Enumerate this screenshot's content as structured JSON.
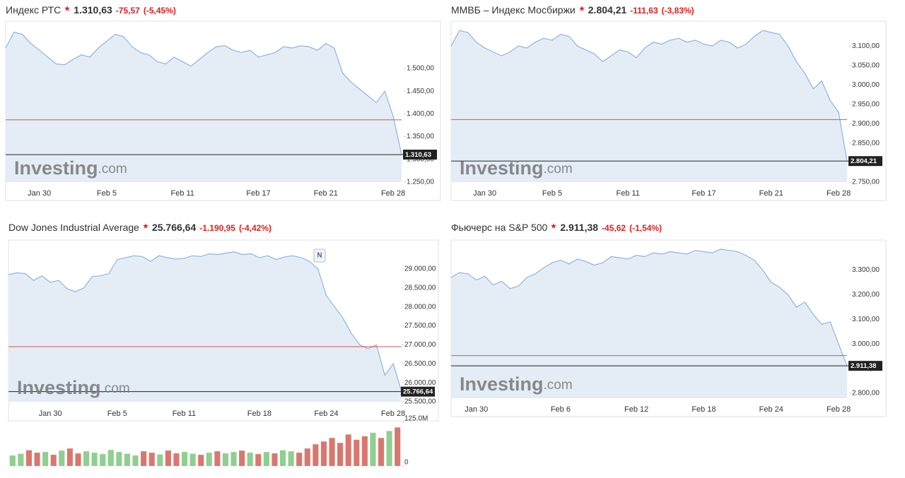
{
  "chart_data": [
    {
      "type": "area",
      "title": "Индекс РТС",
      "price": "1.310,63",
      "change": "-75,57",
      "change_pct": "(-5,45%)",
      "brand": "Investing",
      "brand_suffix": ".com",
      "color": "#8db4de",
      "fill": "#e4edf6",
      "reference_line": {
        "value": 1387,
        "color": "#d9534f"
      },
      "last_label": "1.310,63",
      "categories": [
        null,
        null,
        null,
        null,
        "Jan 30",
        null,
        null,
        null,
        null,
        null,
        null,
        null,
        "Feb 5",
        null,
        null,
        null,
        null,
        null,
        null,
        null,
        null,
        "Feb 11",
        null,
        null,
        null,
        null,
        null,
        null,
        null,
        null,
        "Feb 17",
        null,
        null,
        null,
        null,
        null,
        null,
        null,
        "Feb 21",
        null,
        null,
        null,
        null,
        null,
        null,
        null,
        "Feb 28",
        null
      ],
      "values": [
        1545,
        1580,
        1575,
        1555,
        1540,
        1525,
        1510,
        1508,
        1520,
        1530,
        1525,
        1545,
        1560,
        1575,
        1570,
        1548,
        1535,
        1530,
        1515,
        1510,
        1525,
        1515,
        1505,
        1520,
        1535,
        1548,
        1550,
        1540,
        1535,
        1540,
        1525,
        1530,
        1535,
        1548,
        1545,
        1550,
        1548,
        1540,
        1555,
        1545,
        1490,
        1470,
        1455,
        1440,
        1425,
        1450,
        1395,
        1310.63
      ],
      "ylim": [
        1250,
        1604
      ],
      "yticks": [
        {
          "value": 1250,
          "label": "1.250,00"
        },
        {
          "value": 1300,
          "label": "1.300,00"
        },
        {
          "value": 1350,
          "label": "1.350,00"
        },
        {
          "value": 1400,
          "label": "1.400,00"
        },
        {
          "value": 1450,
          "label": "1.450,00"
        },
        {
          "value": 1500,
          "label": "1.500,00"
        }
      ]
    },
    {
      "type": "area",
      "title": "ММВБ – Индекс Мосбиржи",
      "price": "2.804,21",
      "change": "-111,63",
      "change_pct": "(-3,83%)",
      "brand": "Investing",
      "brand_suffix": ".com",
      "color": "#8db4de",
      "fill": "#e4edf6",
      "reference_line": {
        "value": 2911,
        "color": "#d9534f"
      },
      "last_label": "2.804,21",
      "categories": [
        null,
        null,
        null,
        null,
        "Jan 30",
        null,
        null,
        null,
        null,
        null,
        null,
        null,
        "Feb 5",
        null,
        null,
        null,
        null,
        null,
        null,
        null,
        null,
        "Feb 11",
        null,
        null,
        null,
        null,
        null,
        null,
        null,
        null,
        "Feb 17",
        null,
        null,
        null,
        null,
        null,
        null,
        null,
        "Feb 21",
        null,
        null,
        null,
        null,
        null,
        null,
        null,
        "Feb 28",
        null
      ],
      "values": [
        3100,
        3140,
        3135,
        3110,
        3095,
        3085,
        3075,
        3085,
        3100,
        3095,
        3110,
        3120,
        3115,
        3130,
        3125,
        3100,
        3090,
        3080,
        3060,
        3075,
        3090,
        3085,
        3070,
        3095,
        3110,
        3105,
        3115,
        3120,
        3110,
        3115,
        3105,
        3100,
        3115,
        3110,
        3095,
        3105,
        3125,
        3140,
        3135,
        3130,
        3100,
        3060,
        3030,
        2990,
        3010,
        2960,
        2930,
        2804.21
      ],
      "ylim": [
        2750,
        3164
      ],
      "yticks": [
        {
          "value": 2750,
          "label": "2.750,00"
        },
        {
          "value": 2800,
          "label": "2.800,00"
        },
        {
          "value": 2850,
          "label": "2.850,00"
        },
        {
          "value": 2900,
          "label": "2.900,00"
        },
        {
          "value": 2950,
          "label": "2.950,00"
        },
        {
          "value": 3000,
          "label": "3.000,00"
        },
        {
          "value": 3050,
          "label": "3.050,00"
        },
        {
          "value": 3100,
          "label": "3.100,00"
        }
      ]
    },
    {
      "type": "area",
      "title": "Dow Jones Industrial Average",
      "price": "25.766,64",
      "change": "-1.190,95",
      "change_pct": "(-4,42%)",
      "brand": "Investing",
      "brand_suffix": ".com",
      "color": "#8db4de",
      "fill": "#e4edf6",
      "reference_line": {
        "value": 26951,
        "color": "#d9534f"
      },
      "last_label": "25.766,64",
      "news_marker": "N",
      "categories": [
        null,
        null,
        null,
        null,
        null,
        "Jan 30",
        null,
        null,
        null,
        null,
        null,
        null,
        null,
        "Feb 5",
        null,
        null,
        null,
        null,
        null,
        null,
        null,
        "Feb 11",
        null,
        null,
        null,
        null,
        null,
        null,
        null,
        null,
        "Feb 18",
        null,
        null,
        null,
        null,
        null,
        null,
        null,
        "Feb 24",
        null,
        null,
        null,
        null,
        null,
        null,
        null,
        "Feb 28",
        null
      ],
      "values": [
        28850,
        28900,
        28880,
        28700,
        28820,
        28650,
        28700,
        28480,
        28400,
        28500,
        28800,
        28820,
        28880,
        29250,
        29300,
        29350,
        29330,
        29200,
        29350,
        29300,
        29260,
        29280,
        29350,
        29330,
        29400,
        29380,
        29420,
        29450,
        29380,
        29400,
        29300,
        29350,
        29250,
        29320,
        29350,
        29300,
        29200,
        29000,
        28300,
        28000,
        27700,
        27300,
        27000,
        26900,
        27000,
        26200,
        26500,
        25766.64
      ],
      "ylim": [
        25500,
        29763
      ],
      "yticks": [
        {
          "value": 25500,
          "label": "25.500,00"
        },
        {
          "value": 26000,
          "label": "26.000,00"
        },
        {
          "value": 26500,
          "label": "26.500,00"
        },
        {
          "value": 27000,
          "label": "27.000,00"
        },
        {
          "value": 27500,
          "label": "27.500,00"
        },
        {
          "value": 28000,
          "label": "28.000,00"
        },
        {
          "value": 28500,
          "label": "28.500,00"
        },
        {
          "value": 29000,
          "label": "29.000,00"
        }
      ],
      "volume": {
        "up_color": "#8fcf8f",
        "down_color": "#d9776f",
        "values": [
          30000000,
          35000000,
          45000000,
          38000000,
          40000000,
          32000000,
          44000000,
          50000000,
          36000000,
          42000000,
          38000000,
          34000000,
          46000000,
          40000000,
          35000000,
          30000000,
          42000000,
          38000000,
          33000000,
          44000000,
          36000000,
          40000000,
          35000000,
          32000000,
          38000000,
          42000000,
          36000000,
          40000000,
          44000000,
          38000000,
          34000000,
          40000000,
          36000000,
          45000000,
          42000000,
          38000000,
          50000000,
          62000000,
          70000000,
          80000000,
          66000000,
          90000000,
          75000000,
          85000000,
          95000000,
          80000000,
          100000000,
          110000000
        ],
        "ylim": [
          0,
          125000000
        ],
        "yticks": [
          0,
          {
            "value": 125000000,
            "label": "125.0M"
          }
        ]
      }
    },
    {
      "type": "area",
      "title": "Фьючерс на S&P 500",
      "price": "2.911,38",
      "change": "-45,62",
      "change_pct": "(-1,54%)",
      "brand": "Investing",
      "brand_suffix": ".com",
      "color": "#8db4de",
      "fill": "#e4edf6",
      "reference_line": {
        "value": 2953,
        "color": "#d9534f"
      },
      "last_label": "2.911,38",
      "categories": [
        null,
        null,
        null,
        "Jan 30",
        null,
        null,
        null,
        null,
        null,
        null,
        null,
        null,
        null,
        "Feb 6",
        null,
        null,
        null,
        null,
        null,
        null,
        null,
        null,
        "Feb 12",
        null,
        null,
        null,
        null,
        null,
        null,
        null,
        "Feb 18",
        null,
        null,
        null,
        null,
        null,
        null,
        null,
        "Feb 24",
        null,
        null,
        null,
        null,
        null,
        null,
        null,
        "Feb 28",
        null
      ],
      "values": [
        3270,
        3290,
        3285,
        3260,
        3275,
        3240,
        3255,
        3225,
        3235,
        3270,
        3285,
        3310,
        3330,
        3340,
        3325,
        3345,
        3335,
        3320,
        3330,
        3355,
        3350,
        3345,
        3360,
        3355,
        3370,
        3365,
        3375,
        3370,
        3365,
        3380,
        3375,
        3370,
        3385,
        3380,
        3375,
        3360,
        3340,
        3300,
        3250,
        3230,
        3200,
        3150,
        3170,
        3120,
        3080,
        3090,
        3000,
        2911.38
      ],
      "ylim": [
        2780,
        3422
      ],
      "yticks": [
        {
          "value": 2800,
          "label": "2.800,00"
        },
        {
          "value": 2900,
          "label": "2.900,00"
        },
        {
          "value": 3000,
          "label": "3.000,00"
        },
        {
          "value": 3100,
          "label": "3.100,00"
        },
        {
          "value": 3200,
          "label": "3.200,00"
        },
        {
          "value": 3300,
          "label": "3.300,00"
        }
      ]
    }
  ]
}
